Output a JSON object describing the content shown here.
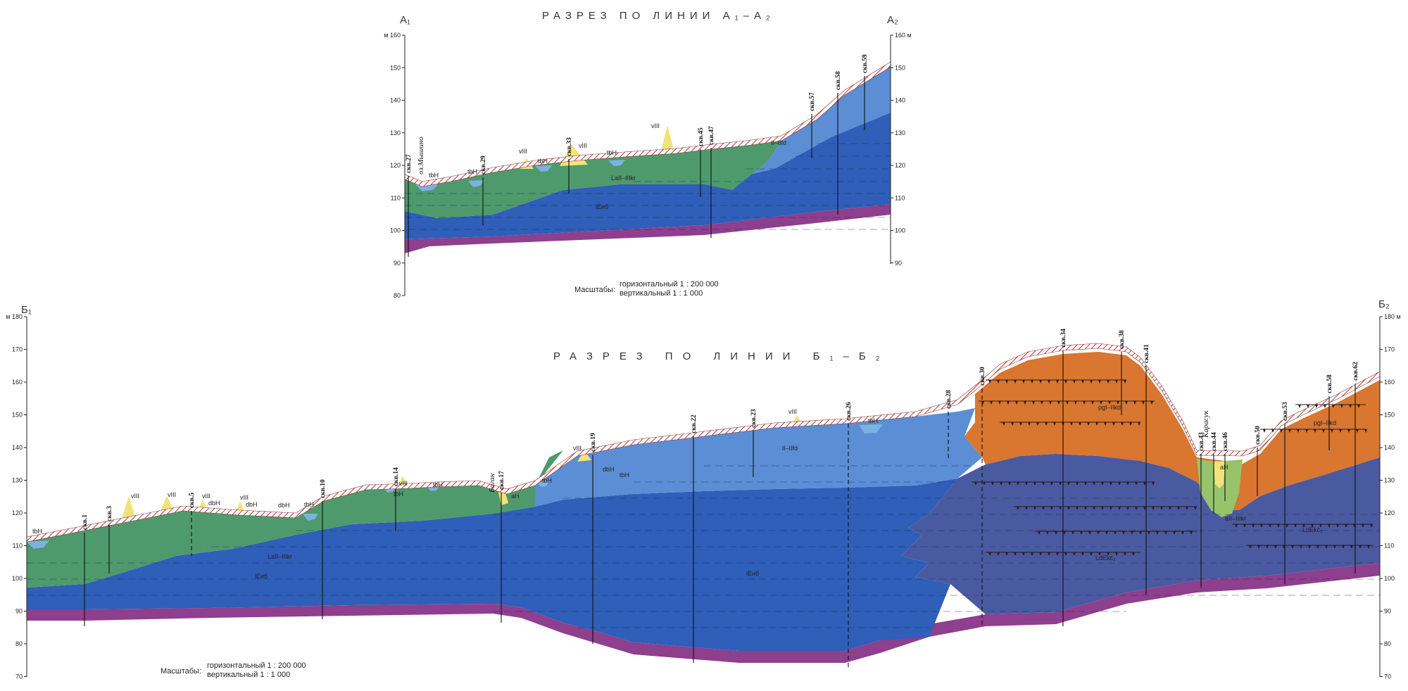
{
  "section_a": {
    "title": "РАЗРЕЗ ПО ЛИНИИ А₁–А₂",
    "start_label": "А₁",
    "end_label": "А₂",
    "unit": "м",
    "y_ticks_left": [
      "160",
      "150",
      "140",
      "130",
      "120",
      "110",
      "100",
      "90",
      "80"
    ],
    "y_ticks_right": [
      "160",
      "150",
      "140",
      "130",
      "120",
      "110",
      "100",
      "90"
    ],
    "scale_caption": "Масштабы:",
    "scale_horizontal": "горизонтальный 1 : 200 000",
    "scale_vertical": "вертикальный 1 : 1 000",
    "wells": [
      "скв.27",
      "скв.29",
      "скв.33",
      "скв.45",
      "скв.47",
      "скв.57",
      "скв.58",
      "скв.59"
    ],
    "place_names": [
      "оз.Мышино"
    ],
    "geology_labels": [
      "tbH",
      "tbH",
      "vIII",
      "tbH",
      "vIII",
      "tbH",
      "vIII",
      "LaII–IIIkr",
      "lEиб",
      "lI–IIfd"
    ]
  },
  "section_b": {
    "title": "РАЗРЕЗ ПО ЛИНИИ Б₁–Б₂",
    "start_label": "Б₁",
    "end_label": "Б₂",
    "unit": "м",
    "y_ticks_left": [
      "180",
      "170",
      "160",
      "150",
      "140",
      "130",
      "120",
      "110",
      "100",
      "90",
      "80",
      "70"
    ],
    "y_ticks_right": [
      "180",
      "170",
      "160",
      "150",
      "140",
      "130",
      "120",
      "110",
      "100",
      "90",
      "80",
      "70"
    ],
    "scale_caption": "Масштабы:",
    "scale_horizontal": "горизонтальный 1 : 200 000",
    "scale_vertical": "вертикальный 1 : 1 000",
    "wells": [
      "скв.1",
      "скв.3",
      "скв.5",
      "скв.10",
      "скв.14",
      "скв.17",
      "скв.19",
      "скв.22",
      "скв.23",
      "скв.26",
      "скв.28",
      "скв.30",
      "скв.34",
      "скв.38",
      "скв.41",
      "скв.43",
      "скв.44",
      "скв.46",
      "скв.50",
      "скв.53",
      "скв.58",
      "скв.62"
    ],
    "place_names": [
      "Баган",
      "Карасук"
    ],
    "geology_labels": [
      "tbH",
      "vIII",
      "vIII",
      "vIII",
      "dbH",
      "vIII",
      "dbH",
      "dbH",
      "tbH",
      "tbH",
      "vIII",
      "tbH",
      "aH",
      "tbH",
      "vIII",
      "dbH",
      "tbH",
      "vIII",
      "tbH",
      "LaII–IIIkr",
      "lEиб",
      "lEиб",
      "lI–IIfd",
      "pgI–IIkd",
      "LdEkč₂",
      "LdEkč₂",
      "aH",
      "aII–IIIkr",
      "pgI–IIkd"
    ]
  },
  "colors": {
    "green_loam": "#4e9a6c",
    "blue_lake": "#2f5fb8",
    "light_blue": "#5b8ed4",
    "orange": "#d9762f",
    "purple_base": "#8e3f8d",
    "slate_blue": "#4a5aa0",
    "yellow_dune": "#f2e27a",
    "lake_water": "#7cb2e0",
    "light_green": "#97c46a"
  }
}
